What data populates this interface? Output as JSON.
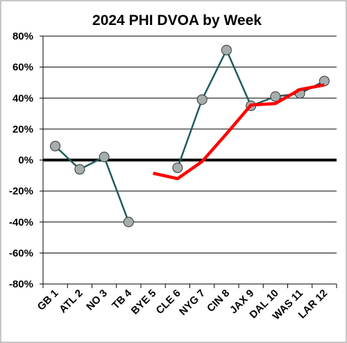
{
  "chart_data": {
    "type": "line",
    "title": "2024 PHI DVOA by Week",
    "xlabel": "",
    "ylabel": "",
    "categories": [
      "GB 1",
      "ATL 2",
      "NO 3",
      "TB 4",
      "BYE 5",
      "CLE 6",
      "NYG 7",
      "CIN 8",
      "JAX 9",
      "DAL 10",
      "WAS 11",
      "LAR 12"
    ],
    "y_ticks": [
      "80%",
      "60%",
      "40%",
      "20%",
      "0%",
      "-20%",
      "-40%",
      "-60%",
      "-80%"
    ],
    "ylim": [
      -80,
      80
    ],
    "grid": true,
    "legend": "none",
    "series": [
      {
        "values": [
          9,
          -6,
          2,
          -40,
          null,
          -5,
          39,
          71,
          35,
          41,
          43,
          51
        ],
        "color": "#1f5a5a",
        "marker_fill": "#a6adad",
        "style": "line-with-markers"
      },
      {
        "values": [
          null,
          null,
          null,
          null,
          -8.5,
          -12,
          -1,
          17,
          35.5,
          36.5,
          45.5,
          48.5
        ],
        "color": "#ff0000",
        "style": "thick-line"
      }
    ],
    "zero_line_color": "#000000"
  }
}
